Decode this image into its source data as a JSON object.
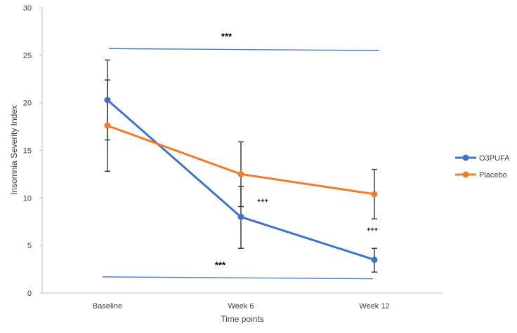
{
  "chart_data": {
    "type": "line",
    "title": "",
    "xlabel": "Time points",
    "ylabel": "Insomnia Severity Index",
    "ylim": [
      0,
      30
    ],
    "yticks": [
      0,
      5,
      10,
      15,
      20,
      25,
      30
    ],
    "categories": [
      "Baseline",
      "Week 6",
      "Week 12"
    ],
    "series": [
      {
        "name": "O3PUFA",
        "color": "#4472C4",
        "values": [
          20.3,
          8.0,
          3.5
        ],
        "error_low": [
          16.1,
          4.7,
          2.2
        ],
        "error_high": [
          24.5,
          11.2,
          4.7
        ]
      },
      {
        "name": "Placebo",
        "color": "#ED7D31",
        "values": [
          17.6,
          12.5,
          10.4
        ],
        "error_low": [
          12.8,
          9.1,
          7.8
        ],
        "error_high": [
          22.4,
          15.9,
          13.0
        ]
      }
    ],
    "legend_position": "right",
    "brackets": [
      {
        "from": 0,
        "to": 2,
        "y_start": 25.7,
        "y_end": 25.5,
        "label": "***",
        "color": "#4472C4"
      },
      {
        "from": 0,
        "to": 2,
        "y_start": 1.7,
        "y_end": 1.5,
        "label": "***",
        "color": "#4472C4"
      }
    ],
    "point_annotations": [
      {
        "category": 1,
        "y": 9.5,
        "label": "+++"
      },
      {
        "category": 2,
        "y": 6.5,
        "label": "+++"
      }
    ]
  }
}
